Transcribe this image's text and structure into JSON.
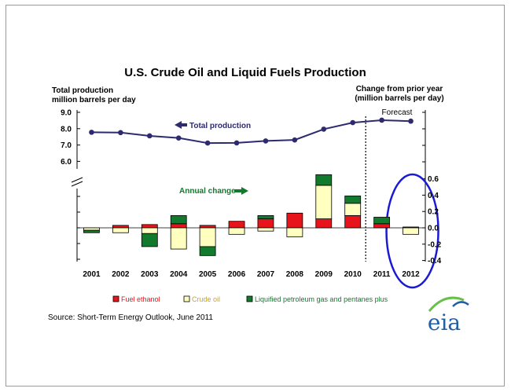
{
  "chart_data": {
    "type": "bar",
    "title": "U.S. Crude Oil and Liquid Fuels Production",
    "left_axis_label_line1": "Total production",
    "left_axis_label_line2": "million barrels per day",
    "right_axis_label_line1": "Change from prior year",
    "right_axis_label_line2": "(million barrels per day)",
    "forecast_label": "Forecast",
    "total_production_annotation": "Total production",
    "annual_change_annotation": "Annual change",
    "categories": [
      "2001",
      "2002",
      "2003",
      "2004",
      "2005",
      "2006",
      "2007",
      "2008",
      "2009",
      "2010",
      "2011",
      "2012"
    ],
    "left_ticks": [
      "9.0",
      "8.0",
      "7.0",
      "6.0"
    ],
    "left_tick_values": [
      9.0,
      8.0,
      7.0,
      6.0
    ],
    "right_ticks": [
      "0.6",
      "0.4",
      "0.2",
      "0.0",
      "-0.2",
      "-0.4"
    ],
    "right_tick_values": [
      0.6,
      0.4,
      0.2,
      0.0,
      -0.2,
      -0.4
    ],
    "total_production": {
      "name": "Total production",
      "color": "#2e2a6e",
      "values": [
        7.78,
        7.76,
        7.56,
        7.43,
        7.12,
        7.13,
        7.25,
        7.31,
        7.97,
        8.37,
        8.52,
        8.46
      ]
    },
    "series": [
      {
        "name": "Fuel ethanol",
        "color": "#e8141b",
        "values": [
          0.0,
          0.03,
          0.04,
          0.05,
          0.03,
          0.08,
          0.11,
          0.18,
          0.11,
          0.15,
          0.05,
          0.01
        ]
      },
      {
        "name": "Crude oil",
        "color": "#ffffc0",
        "values": [
          -0.03,
          -0.06,
          -0.07,
          -0.26,
          -0.23,
          -0.08,
          -0.04,
          -0.11,
          0.41,
          0.15,
          0.0,
          -0.08
        ]
      },
      {
        "name": "Liquified petroleum gas and pentanes plus",
        "color": "#117a2c",
        "values": [
          -0.03,
          0.0,
          -0.16,
          0.1,
          -0.11,
          0.0,
          0.04,
          0.0,
          0.13,
          0.09,
          0.08,
          0.0
        ]
      }
    ],
    "legend": [
      "Fuel ethanol",
      "Crude oil",
      "Liquified petroleum gas and pentanes plus"
    ],
    "legend_placement": "bottom",
    "forecast_from": "2011",
    "highlight": {
      "category": "2012",
      "color": "#1a1ad6"
    }
  },
  "source": "Source: Short-Term Energy Outlook, June 2011",
  "logo_text": "eia"
}
